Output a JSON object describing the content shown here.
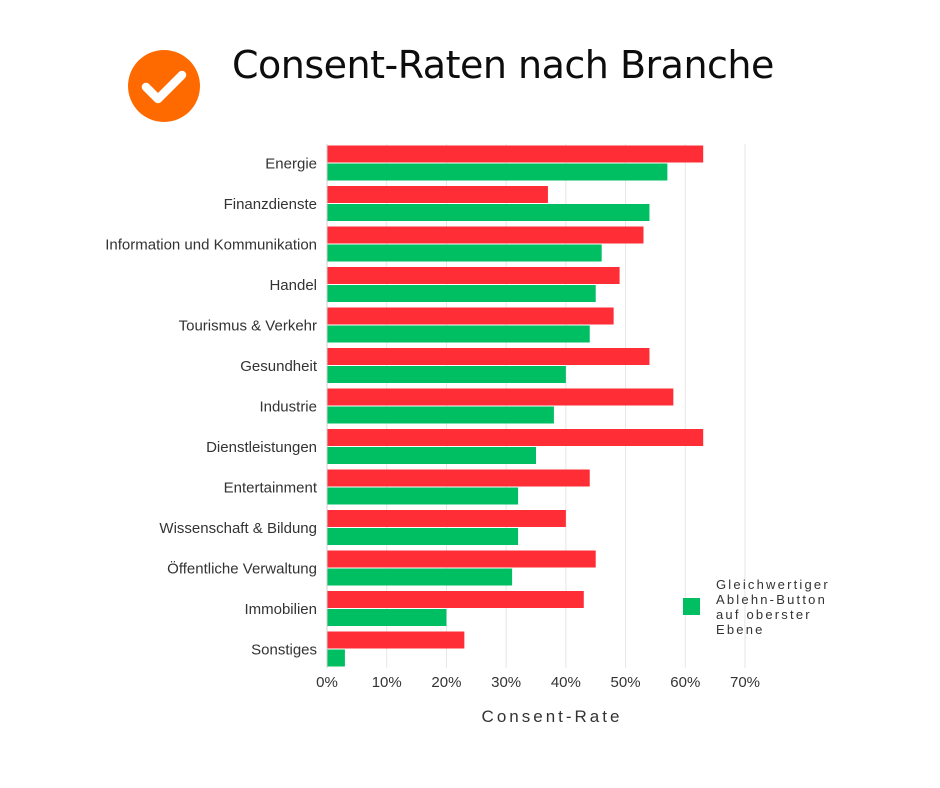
{
  "title": "Consent-Raten nach Branche",
  "icon": "check-circle-icon",
  "colors": {
    "icon": "#ff6a00",
    "series_red": "#ff2d36",
    "series_green": "#00bf63",
    "grid": "#e6e6e6",
    "text": "#333333"
  },
  "chart_data": {
    "type": "bar",
    "orientation": "horizontal",
    "categories": [
      "Energie",
      "Finanzdienste",
      "Information und Kommunikation",
      "Handel",
      "Tourismus & Verkehr",
      "Gesundheit",
      "Industrie",
      "Dienstleistungen",
      "Entertainment",
      "Wissenschaft & Bildung",
      "Öffentliche Verwaltung",
      "Immobilien",
      "Sonstiges"
    ],
    "series": [
      {
        "color": "#ff2d36",
        "values": [
          63,
          37,
          53,
          49,
          48,
          54,
          58,
          63,
          44,
          40,
          45,
          43,
          23
        ]
      },
      {
        "name": "Gleichwertiger Ablehn-Button auf oberster Ebene",
        "color": "#00bf63",
        "values": [
          57,
          54,
          46,
          45,
          44,
          40,
          38,
          35,
          32,
          32,
          31,
          20,
          3
        ]
      }
    ],
    "xlabel": "Consent-Rate",
    "xlim": [
      0,
      70
    ],
    "xticks": [
      "0%",
      "10%",
      "20%",
      "30%",
      "40%",
      "50%",
      "60%",
      "70%"
    ],
    "grid": "vertical",
    "legend": {
      "placement": "right",
      "lines": [
        "Gleichwertiger",
        "Ablehn-Button",
        "auf oberster",
        "Ebene"
      ]
    }
  }
}
